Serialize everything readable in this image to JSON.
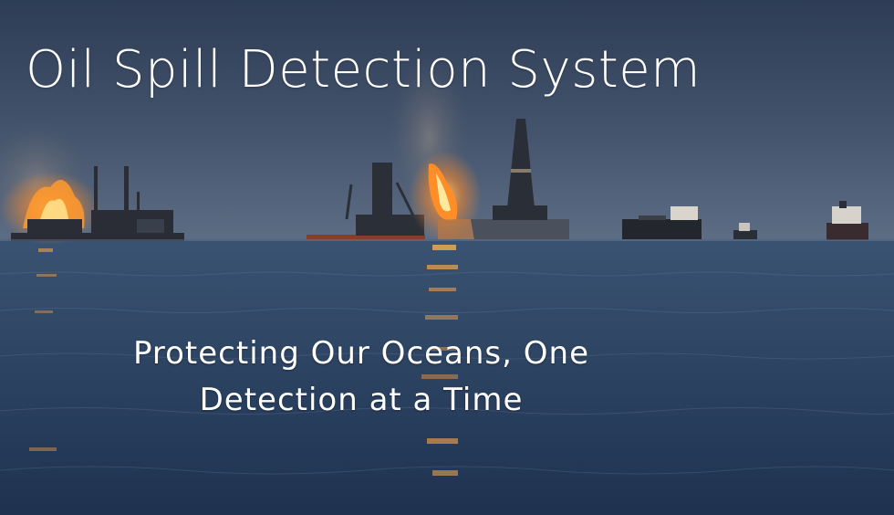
{
  "hero": {
    "title": "Oil Spill Detection System",
    "tagline": "Protecting Our Oceans, One Detection at a Time"
  },
  "colors": {
    "sky_top": "#2f3e58",
    "sky_horizon": "#5a6b83",
    "sea": "#2a3f5e",
    "fire": "#ff9a2e",
    "text": "#ffffff"
  }
}
